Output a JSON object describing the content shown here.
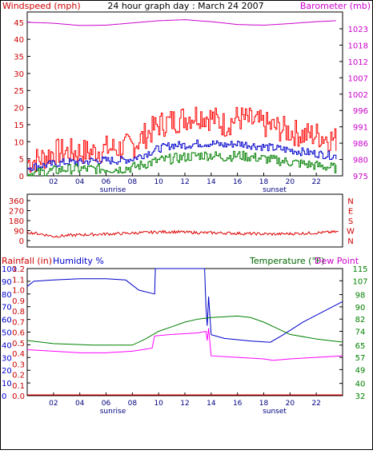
{
  "chart_data": [
    {
      "type": "line",
      "title": "24 hour graph day : March 24 2007",
      "left_axis_label": "Windspeed (mph)",
      "right_axis_label": "Barometer (mb)",
      "left_ticks": [
        0,
        5,
        10,
        15,
        20,
        25,
        30,
        35,
        40,
        45
      ],
      "left_range": [
        0,
        48
      ],
      "right_ticks": [
        975,
        980,
        986,
        991,
        996,
        1002,
        1007,
        1012,
        1018,
        1023
      ],
      "right_range": [
        975,
        1026
      ],
      "x_ticks": [
        "02",
        "04",
        "06",
        "08",
        "10",
        "12",
        "14",
        "16",
        "18",
        "20",
        "22"
      ],
      "x_range": [
        0,
        24
      ],
      "sunrise_label": "sunrise",
      "sunset_label": "sunset",
      "sunrise_hour": 8,
      "sunset_hour": 18.8,
      "series": [
        {
          "color": "#cc00cc",
          "axis": "right",
          "hours": [
            0,
            2,
            4,
            6,
            8,
            10,
            12,
            14,
            16,
            18,
            20,
            22,
            23.5
          ],
          "values": [
            1022.8,
            1022.5,
            1021.8,
            1021.9,
            1022.6,
            1023.3,
            1023.6,
            1023.0,
            1022.1,
            1021.9,
            1022.4,
            1023.0,
            1023.3
          ]
        },
        {
          "color": "#ff0000",
          "axis": "left",
          "hours": [
            0,
            1,
            2,
            3,
            4,
            5,
            6,
            7,
            8,
            9,
            10,
            11,
            12,
            13,
            14,
            15,
            16,
            17,
            18,
            19,
            20,
            21,
            22,
            23,
            24
          ],
          "values": [
            4,
            5,
            7,
            7,
            7,
            7,
            8,
            8,
            9,
            12,
            15,
            16,
            17,
            18,
            17,
            15,
            17,
            16,
            15,
            14,
            13,
            12,
            12,
            11,
            10
          ]
        },
        {
          "color": "#0000cc",
          "axis": "left",
          "hours": [
            0,
            1,
            2,
            3,
            4,
            5,
            6,
            7,
            8,
            9,
            10,
            11,
            12,
            13,
            14,
            15,
            16,
            17,
            18,
            19,
            20,
            21,
            22,
            23,
            24
          ],
          "values": [
            2.5,
            3,
            3.5,
            4,
            4,
            4.5,
            4.5,
            4.5,
            5,
            6.5,
            8,
            9,
            9,
            9.5,
            9.5,
            9,
            9.5,
            9,
            8.5,
            8,
            7.5,
            7,
            6.5,
            6,
            5.5
          ]
        },
        {
          "color": "#008000",
          "axis": "left",
          "hours": [
            0,
            1,
            2,
            3,
            4,
            5,
            6,
            7,
            8,
            9,
            10,
            11,
            12,
            13,
            14,
            15,
            16,
            17,
            18,
            19,
            20,
            21,
            22,
            23,
            24
          ],
          "values": [
            0.5,
            1,
            1.5,
            2,
            2,
            2,
            2,
            2,
            2.5,
            3.5,
            4.5,
            5,
            5.5,
            6,
            6,
            5.5,
            6,
            5.5,
            5,
            4.5,
            4,
            3.5,
            3,
            2.5,
            2
          ]
        }
      ]
    },
    {
      "type": "line",
      "left_ticks": [
        0,
        90,
        180,
        270,
        360
      ],
      "left_range": [
        0,
        360
      ],
      "right_ticks": [
        "N",
        "W",
        "S",
        "E",
        "N"
      ],
      "x_range": [
        0,
        24
      ],
      "series": [
        {
          "color": "#dd0000",
          "hours": [
            0,
            1,
            2,
            3,
            4,
            5,
            6,
            7,
            8,
            9,
            10,
            11,
            12,
            13,
            14,
            15,
            16,
            17,
            18,
            19,
            20,
            21,
            22,
            23,
            24
          ],
          "values": [
            75,
            60,
            38,
            45,
            52,
            55,
            60,
            62,
            68,
            72,
            78,
            80,
            75,
            72,
            70,
            68,
            65,
            62,
            60,
            58,
            62,
            65,
            70,
            75,
            82
          ]
        }
      ]
    },
    {
      "type": "line",
      "left_axis_label": "Rainfall (in)",
      "humidity_label": "Humidity %",
      "right_axis_label": "Temperature (°F)",
      "dew_point_label": "Dew Point",
      "left_ticks_rain": [
        "0.0",
        "0.1",
        "0.2",
        "0.3",
        "0.4",
        "0.5",
        "0.6",
        "0.7",
        "0.8",
        "0.9",
        "1.0",
        "1.1",
        "1.2"
      ],
      "left_ticks_humidity": [
        0,
        10,
        20,
        30,
        40,
        50,
        60,
        70,
        80,
        90,
        100
      ],
      "left_range": [
        0,
        100
      ],
      "right_ticks": [
        32,
        40,
        49,
        57,
        65,
        74,
        82,
        90,
        98,
        107,
        115
      ],
      "right_range": [
        32,
        115
      ],
      "x_ticks": [
        "02",
        "04",
        "06",
        "08",
        "10",
        "12",
        "14",
        "16",
        "18",
        "20",
        "22"
      ],
      "x_range": [
        0,
        24
      ],
      "sunrise_label": "sunrise",
      "sunset_label": "sunset",
      "sunrise_hour": 8,
      "sunset_hour": 18.8,
      "series": [
        {
          "color": "#0000cc",
          "axis": "left",
          "hours": [
            0,
            0.5,
            2,
            4,
            6,
            7.5,
            8.5,
            9.7,
            9.75,
            11,
            13,
            13.5,
            13.6,
            13.7,
            13.8,
            14,
            15,
            17,
            18.5,
            19.5,
            21,
            22.5,
            24
          ],
          "values": [
            86,
            90,
            91,
            92,
            92,
            91,
            83,
            80,
            100,
            100,
            100,
            100,
            70,
            55,
            78,
            48,
            45,
            43,
            42,
            48,
            58,
            66,
            74
          ]
        },
        {
          "color": "#008000",
          "axis": "right",
          "hours": [
            0,
            2,
            5,
            8,
            9,
            10,
            11,
            12,
            13,
            14,
            16,
            17,
            18,
            19,
            20,
            22,
            24
          ],
          "values": [
            68,
            66,
            65,
            65,
            69,
            74,
            77,
            80,
            82,
            83,
            84,
            83,
            80,
            76,
            72,
            69,
            67
          ]
        },
        {
          "color": "#ff00ff",
          "axis": "right",
          "hours": [
            0,
            2,
            4,
            6,
            8,
            9.5,
            9.7,
            11,
            13,
            13.6,
            13.7,
            13.8,
            14,
            16,
            18,
            18.7,
            20,
            22,
            24
          ],
          "values": [
            62,
            61,
            60,
            60,
            61,
            63,
            71,
            72,
            73,
            74,
            68,
            76,
            58,
            57,
            56,
            55,
            56,
            57,
            58
          ]
        },
        {
          "color": "#ff0000",
          "axis": "rain",
          "hours": [
            0,
            24
          ],
          "values": [
            0,
            0
          ]
        }
      ]
    }
  ]
}
